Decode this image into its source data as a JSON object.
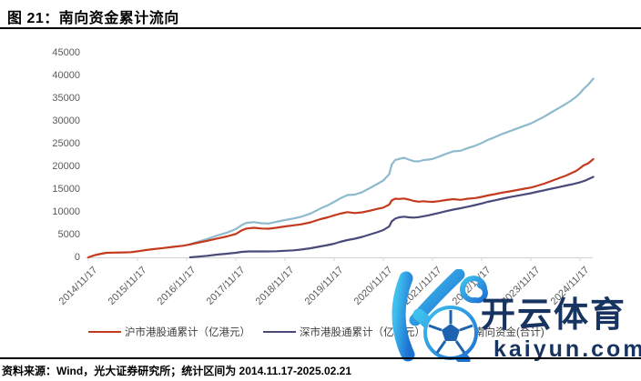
{
  "title": "图 21：南向资金累计流向",
  "source_note": "资料来源：Wind，光大证券研究所；统计区间为 2014.11.17-2025.02.21",
  "watermark": {
    "brand": "开云体育",
    "domain": "kaiyun.com",
    "logo": "kaiyun-k-football-logo",
    "colors": {
      "text": "#17335f",
      "gradient_start": "#3fc0ee",
      "gradient_end": "#1d71d2"
    }
  },
  "colors": {
    "axis": "#d6d6d6",
    "tick_label": "#5a5a5a",
    "rule": "#000000"
  },
  "chart_data": {
    "type": "line",
    "title": "南向资金累计流向",
    "xlabel": "",
    "ylabel": "",
    "ylim": [
      0,
      45000
    ],
    "ytick_step": 5000,
    "grid": false,
    "legend_position": "bottom",
    "xtick_labels": [
      "2014/11/17",
      "2015/11/17",
      "2016/11/17",
      "2017/11/17",
      "2018/11/17",
      "2019/11/17",
      "2020/11/17",
      "2021/11/17",
      "2022/11/17",
      "2023/11/17",
      "2024/11/17"
    ],
    "x_unit": "decimal_year",
    "x_range": [
      2014.88,
      2025.15
    ],
    "series": [
      {
        "name": "沪市港股通累计（亿港元）",
        "color": "#c43a1e",
        "points": [
          [
            2014.88,
            0
          ],
          [
            2015.0,
            450
          ],
          [
            2015.1,
            700
          ],
          [
            2015.25,
            1000
          ],
          [
            2015.4,
            1050
          ],
          [
            2015.6,
            1080
          ],
          [
            2015.75,
            1150
          ],
          [
            2015.88,
            1320
          ],
          [
            2016.05,
            1600
          ],
          [
            2016.2,
            1800
          ],
          [
            2016.4,
            2050
          ],
          [
            2016.6,
            2300
          ],
          [
            2016.8,
            2550
          ],
          [
            2016.95,
            2850
          ],
          [
            2017.1,
            3200
          ],
          [
            2017.3,
            3650
          ],
          [
            2017.5,
            4150
          ],
          [
            2017.7,
            4600
          ],
          [
            2017.88,
            5150
          ],
          [
            2018.0,
            5950
          ],
          [
            2018.1,
            6350
          ],
          [
            2018.25,
            6500
          ],
          [
            2018.4,
            6350
          ],
          [
            2018.55,
            6300
          ],
          [
            2018.7,
            6500
          ],
          [
            2018.88,
            6800
          ],
          [
            2019.05,
            7050
          ],
          [
            2019.2,
            7250
          ],
          [
            2019.4,
            7700
          ],
          [
            2019.6,
            8400
          ],
          [
            2019.75,
            8800
          ],
          [
            2019.88,
            9250
          ],
          [
            2020.0,
            9600
          ],
          [
            2020.15,
            9950
          ],
          [
            2020.3,
            9750
          ],
          [
            2020.45,
            9900
          ],
          [
            2020.6,
            10250
          ],
          [
            2020.75,
            10650
          ],
          [
            2020.88,
            10950
          ],
          [
            2021.0,
            11600
          ],
          [
            2021.05,
            12500
          ],
          [
            2021.12,
            12900
          ],
          [
            2021.2,
            12850
          ],
          [
            2021.3,
            12950
          ],
          [
            2021.4,
            12700
          ],
          [
            2021.5,
            12400
          ],
          [
            2021.6,
            12250
          ],
          [
            2021.7,
            12350
          ],
          [
            2021.8,
            12250
          ],
          [
            2021.88,
            12200
          ],
          [
            2022.0,
            12350
          ],
          [
            2022.15,
            12600
          ],
          [
            2022.3,
            12800
          ],
          [
            2022.45,
            12650
          ],
          [
            2022.6,
            12900
          ],
          [
            2022.75,
            13050
          ],
          [
            2022.88,
            13300
          ],
          [
            2023.0,
            13600
          ],
          [
            2023.15,
            13900
          ],
          [
            2023.3,
            14250
          ],
          [
            2023.45,
            14500
          ],
          [
            2023.6,
            14800
          ],
          [
            2023.75,
            15100
          ],
          [
            2023.88,
            15350
          ],
          [
            2024.0,
            15700
          ],
          [
            2024.15,
            16200
          ],
          [
            2024.3,
            16800
          ],
          [
            2024.45,
            17400
          ],
          [
            2024.6,
            18000
          ],
          [
            2024.7,
            18500
          ],
          [
            2024.8,
            19000
          ],
          [
            2024.88,
            19600
          ],
          [
            2024.95,
            20200
          ],
          [
            2025.05,
            20700
          ],
          [
            2025.15,
            21600
          ]
        ]
      },
      {
        "name": "深市港股通累计（亿港元）",
        "color": "#4a4a7a",
        "points": [
          [
            2016.95,
            0
          ],
          [
            2017.1,
            150
          ],
          [
            2017.3,
            350
          ],
          [
            2017.5,
            600
          ],
          [
            2017.7,
            800
          ],
          [
            2017.88,
            1000
          ],
          [
            2018.0,
            1200
          ],
          [
            2018.15,
            1300
          ],
          [
            2018.3,
            1300
          ],
          [
            2018.5,
            1300
          ],
          [
            2018.7,
            1350
          ],
          [
            2018.88,
            1450
          ],
          [
            2019.05,
            1550
          ],
          [
            2019.2,
            1700
          ],
          [
            2019.4,
            2000
          ],
          [
            2019.6,
            2400
          ],
          [
            2019.75,
            2700
          ],
          [
            2019.88,
            3000
          ],
          [
            2020.0,
            3400
          ],
          [
            2020.15,
            3800
          ],
          [
            2020.3,
            4100
          ],
          [
            2020.45,
            4500
          ],
          [
            2020.6,
            5000
          ],
          [
            2020.75,
            5500
          ],
          [
            2020.88,
            6000
          ],
          [
            2021.0,
            6800
          ],
          [
            2021.05,
            7900
          ],
          [
            2021.12,
            8500
          ],
          [
            2021.2,
            8800
          ],
          [
            2021.3,
            8950
          ],
          [
            2021.4,
            8800
          ],
          [
            2021.5,
            8750
          ],
          [
            2021.6,
            8850
          ],
          [
            2021.7,
            9050
          ],
          [
            2021.8,
            9250
          ],
          [
            2021.88,
            9450
          ],
          [
            2022.0,
            9750
          ],
          [
            2022.15,
            10150
          ],
          [
            2022.3,
            10500
          ],
          [
            2022.45,
            10800
          ],
          [
            2022.6,
            11150
          ],
          [
            2022.75,
            11500
          ],
          [
            2022.88,
            11850
          ],
          [
            2023.0,
            12200
          ],
          [
            2023.15,
            12550
          ],
          [
            2023.3,
            12900
          ],
          [
            2023.45,
            13250
          ],
          [
            2023.6,
            13550
          ],
          [
            2023.75,
            13850
          ],
          [
            2023.88,
            14100
          ],
          [
            2024.0,
            14400
          ],
          [
            2024.15,
            14750
          ],
          [
            2024.3,
            15100
          ],
          [
            2024.45,
            15450
          ],
          [
            2024.6,
            15800
          ],
          [
            2024.75,
            16150
          ],
          [
            2024.88,
            16500
          ],
          [
            2025.0,
            16950
          ],
          [
            2025.15,
            17700
          ]
        ]
      },
      {
        "name": "南向资金(合计)",
        "color": "#8fbacd",
        "points": [
          [
            2016.95,
            2900
          ],
          [
            2017.1,
            3400
          ],
          [
            2017.3,
            4050
          ],
          [
            2017.5,
            4800
          ],
          [
            2017.7,
            5450
          ],
          [
            2017.88,
            6200
          ],
          [
            2018.0,
            7100
          ],
          [
            2018.1,
            7600
          ],
          [
            2018.25,
            7750
          ],
          [
            2018.4,
            7500
          ],
          [
            2018.55,
            7450
          ],
          [
            2018.7,
            7800
          ],
          [
            2018.88,
            8200
          ],
          [
            2019.05,
            8550
          ],
          [
            2019.2,
            8900
          ],
          [
            2019.4,
            9650
          ],
          [
            2019.6,
            10750
          ],
          [
            2019.75,
            11450
          ],
          [
            2019.88,
            12200
          ],
          [
            2020.0,
            12950
          ],
          [
            2020.15,
            13700
          ],
          [
            2020.3,
            13800
          ],
          [
            2020.45,
            14350
          ],
          [
            2020.6,
            15200
          ],
          [
            2020.75,
            16100
          ],
          [
            2020.88,
            16900
          ],
          [
            2021.0,
            18300
          ],
          [
            2021.05,
            20400
          ],
          [
            2021.12,
            21400
          ],
          [
            2021.2,
            21650
          ],
          [
            2021.3,
            21900
          ],
          [
            2021.4,
            21500
          ],
          [
            2021.5,
            21150
          ],
          [
            2021.6,
            21100
          ],
          [
            2021.7,
            21400
          ],
          [
            2021.8,
            21500
          ],
          [
            2021.88,
            21650
          ],
          [
            2022.0,
            22100
          ],
          [
            2022.15,
            22750
          ],
          [
            2022.3,
            23300
          ],
          [
            2022.45,
            23450
          ],
          [
            2022.6,
            24050
          ],
          [
            2022.75,
            24550
          ],
          [
            2022.88,
            25150
          ],
          [
            2023.0,
            25800
          ],
          [
            2023.15,
            26450
          ],
          [
            2023.3,
            27150
          ],
          [
            2023.45,
            27750
          ],
          [
            2023.6,
            28350
          ],
          [
            2023.75,
            28950
          ],
          [
            2023.88,
            29450
          ],
          [
            2024.0,
            30100
          ],
          [
            2024.15,
            30950
          ],
          [
            2024.3,
            31900
          ],
          [
            2024.45,
            32850
          ],
          [
            2024.6,
            33800
          ],
          [
            2024.7,
            34500
          ],
          [
            2024.8,
            35300
          ],
          [
            2024.88,
            36100
          ],
          [
            2024.95,
            37000
          ],
          [
            2025.05,
            38000
          ],
          [
            2025.15,
            39300
          ]
        ]
      }
    ]
  }
}
